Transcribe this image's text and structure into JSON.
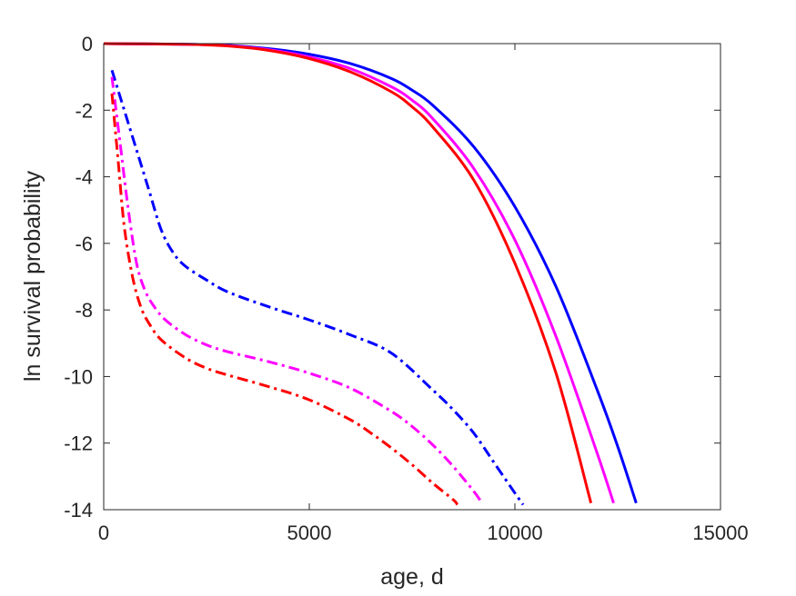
{
  "chart_data": {
    "type": "line",
    "title": "",
    "xlabel": "age, d",
    "ylabel": "ln survival probability",
    "xlim": [
      0,
      15000
    ],
    "ylim": [
      -14,
      0
    ],
    "xticks": [
      0,
      5000,
      10000,
      15000
    ],
    "xtick_labels": [
      "0",
      "5000",
      "10000",
      "15000"
    ],
    "yticks": [
      0,
      -2,
      -4,
      -6,
      -8,
      -10,
      -12,
      -14
    ],
    "ytick_labels": [
      "0",
      "-2",
      "-4",
      "-6",
      "-8",
      "-10",
      "-12",
      "-14"
    ],
    "grid": false,
    "legend": "none",
    "series": [
      {
        "color": "#0000ff",
        "style": "solid",
        "x": [
          0,
          2000,
          3000,
          4000,
          5000,
          6000,
          7000,
          7500,
          8000,
          9000,
          10000,
          11000,
          12000,
          12500,
          12950
        ],
        "y": [
          0,
          -0.02,
          -0.05,
          -0.15,
          -0.32,
          -0.6,
          -1.05,
          -1.4,
          -1.85,
          -3.1,
          -4.9,
          -7.3,
          -10.4,
          -12.1,
          -13.8
        ]
      },
      {
        "color": "#ff00ff",
        "style": "solid",
        "x": [
          0,
          2000,
          3000,
          4000,
          5000,
          6000,
          7000,
          7500,
          8000,
          9000,
          10000,
          11000,
          12000,
          12400
        ],
        "y": [
          0,
          -0.02,
          -0.06,
          -0.18,
          -0.4,
          -0.75,
          -1.3,
          -1.7,
          -2.25,
          -3.75,
          -5.9,
          -8.8,
          -12.3,
          -13.8
        ]
      },
      {
        "color": "#ff0000",
        "style": "solid",
        "x": [
          0,
          2000,
          3000,
          4000,
          5000,
          6000,
          7000,
          7500,
          8000,
          9000,
          10000,
          11000,
          11850
        ],
        "y": [
          0,
          -0.02,
          -0.07,
          -0.2,
          -0.45,
          -0.85,
          -1.45,
          -1.9,
          -2.5,
          -4.1,
          -6.6,
          -9.9,
          -13.8
        ]
      },
      {
        "color": "#0000ff",
        "style": "dashdot",
        "x": [
          200,
          500,
          800,
          1100,
          1400,
          1700,
          2000,
          2500,
          3000,
          4000,
          5000,
          6000,
          7000,
          8000,
          8500,
          9000,
          9500,
          10000,
          10200
        ],
        "y": [
          -0.8,
          -2.0,
          -3.2,
          -4.4,
          -5.6,
          -6.3,
          -6.7,
          -7.1,
          -7.45,
          -7.9,
          -8.3,
          -8.75,
          -9.3,
          -10.4,
          -11.0,
          -11.7,
          -12.6,
          -13.5,
          -13.85
        ]
      },
      {
        "color": "#ff00ff",
        "style": "dashdot",
        "x": [
          200,
          400,
          600,
          800,
          1000,
          1200,
          1500,
          2000,
          2500,
          3000,
          4000,
          5000,
          6000,
          7000,
          7500,
          8000,
          8500,
          9000,
          9200
        ],
        "y": [
          -1.0,
          -3.0,
          -5.0,
          -6.6,
          -7.4,
          -7.85,
          -8.3,
          -8.75,
          -9.05,
          -9.25,
          -9.55,
          -9.9,
          -10.35,
          -11.05,
          -11.5,
          -12.05,
          -12.7,
          -13.45,
          -13.8
        ]
      },
      {
        "color": "#ff0000",
        "style": "dashdot",
        "x": [
          200,
          350,
          500,
          700,
          900,
          1100,
          1400,
          2000,
          2500,
          3000,
          4000,
          5000,
          6000,
          6500,
          7000,
          7500,
          8000,
          8500,
          8600
        ],
        "y": [
          -1.5,
          -3.5,
          -5.5,
          -7.0,
          -7.9,
          -8.4,
          -8.9,
          -9.45,
          -9.75,
          -9.95,
          -10.3,
          -10.7,
          -11.3,
          -11.7,
          -12.15,
          -12.65,
          -13.2,
          -13.7,
          -13.85
        ]
      }
    ]
  }
}
